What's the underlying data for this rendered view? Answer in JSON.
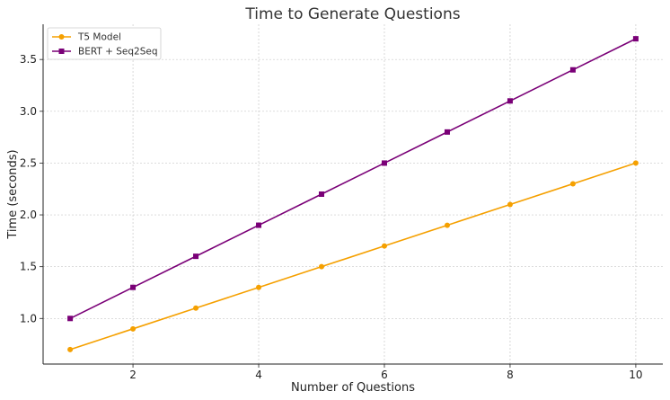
{
  "chart_data": {
    "type": "line",
    "title": "Time to Generate Questions",
    "xlabel": "Number of Questions",
    "ylabel": "Time (seconds)",
    "x": [
      1,
      2,
      3,
      4,
      5,
      6,
      7,
      8,
      9,
      10
    ],
    "xlim": [
      0.57,
      10.43
    ],
    "ylim": [
      0.56,
      3.84
    ],
    "xticks": [
      "2",
      "4",
      "6",
      "8",
      "10"
    ],
    "yticks": [
      "1.0",
      "1.5",
      "2.0",
      "2.5",
      "3.0",
      "3.5"
    ],
    "grid": true,
    "legend_position": "top-left",
    "series": [
      {
        "name": "T5 Model",
        "color": "#f5a000",
        "marker": "circle",
        "values": [
          0.7,
          0.9,
          1.1,
          1.3,
          1.5,
          1.7,
          1.9,
          2.1,
          2.3,
          2.5
        ]
      },
      {
        "name": "BERT + Seq2Seq",
        "color": "#7a0077",
        "marker": "square",
        "values": [
          1.0,
          1.3,
          1.6,
          1.9,
          2.2,
          2.5,
          2.8,
          3.1,
          3.4,
          3.7
        ]
      }
    ]
  }
}
